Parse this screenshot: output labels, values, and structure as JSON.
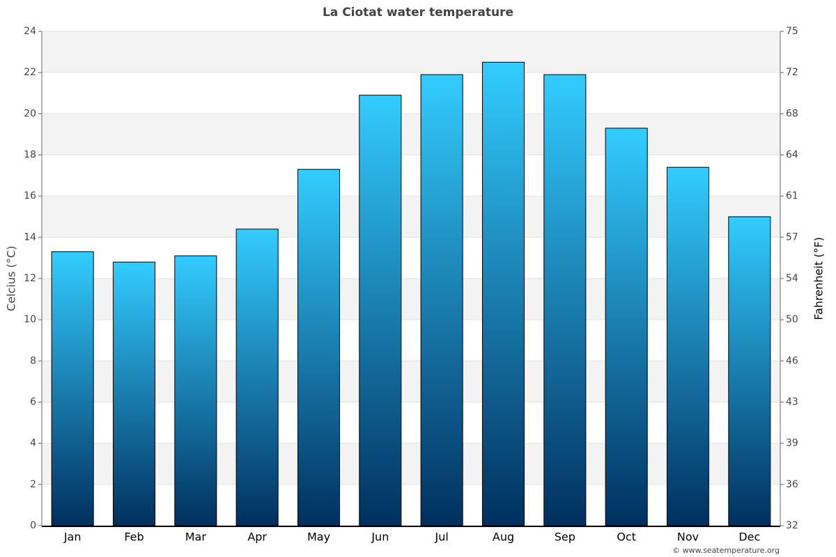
{
  "chart_data": {
    "type": "bar",
    "title": "La Ciotat water temperature",
    "categories": [
      "Jan",
      "Feb",
      "Mar",
      "Apr",
      "May",
      "Jun",
      "Jul",
      "Aug",
      "Sep",
      "Oct",
      "Nov",
      "Dec"
    ],
    "values": [
      13.3,
      12.8,
      13.1,
      14.4,
      17.3,
      20.9,
      21.9,
      22.5,
      21.9,
      19.3,
      17.4,
      15.0
    ],
    "gradient": [
      "#33ccff",
      "#00305f"
    ],
    "ylabel": "Celcius (°C)",
    "y2label": "Fahrenheit (°F)",
    "ylim": [
      0,
      24
    ],
    "yticks": [
      0,
      2,
      4,
      6,
      8,
      10,
      12,
      14,
      16,
      18,
      20,
      22,
      24
    ],
    "y2lim": [
      32,
      75.2
    ],
    "y2ticks": [
      {
        "value": 32,
        "label": "32"
      },
      {
        "value": 35.6,
        "label": "36"
      },
      {
        "value": 39.2,
        "label": "39"
      },
      {
        "value": 42.8,
        "label": "43"
      },
      {
        "value": 46.4,
        "label": "46"
      },
      {
        "value": 50,
        "label": "50"
      },
      {
        "value": 53.6,
        "label": "54"
      },
      {
        "value": 57.2,
        "label": "57"
      },
      {
        "value": 60.8,
        "label": "61"
      },
      {
        "value": 64.4,
        "label": "64"
      },
      {
        "value": 68,
        "label": "68"
      },
      {
        "value": 71.6,
        "label": "72"
      },
      {
        "value": 75.2,
        "label": "75"
      }
    ],
    "grid": true,
    "credit": "© www.seatemperature.org"
  }
}
